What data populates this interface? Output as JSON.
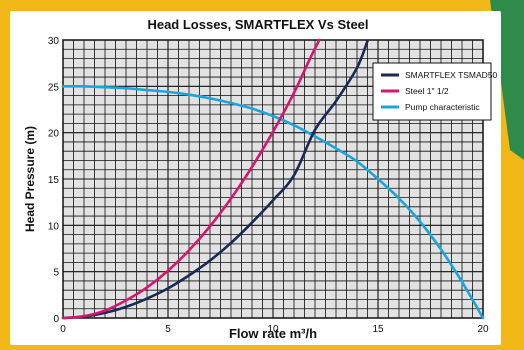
{
  "colors": {
    "background": "#f2b818",
    "corner_accent": "#2e8b4a",
    "card": "#ffffff",
    "plot_fill": "#e2e2e2",
    "grid": "#111111",
    "smartflex": "#1b2a55",
    "steel": "#d7156e",
    "pump": "#1aa6dc"
  },
  "chart_data": {
    "type": "line",
    "title": "Head Losses, SMARTFLEX Vs Steel",
    "xlabel": "Flow rate m³/h",
    "ylabel": "Head Pressure (m)",
    "xlim": [
      0,
      20
    ],
    "ylim": [
      0,
      30
    ],
    "x_ticks": [
      0,
      5,
      10,
      15,
      20
    ],
    "y_ticks": [
      0,
      5,
      10,
      15,
      20,
      25,
      30
    ],
    "grid": true,
    "legend_position": "top-right",
    "series": [
      {
        "name": "SMARTFLEX TSMAD50",
        "color": "#1b2a55",
        "x": [
          0,
          1,
          2,
          3,
          4,
          5,
          6,
          7,
          8,
          9,
          10,
          11,
          12,
          13,
          14,
          14.5
        ],
        "y": [
          0,
          0.15,
          0.55,
          1.2,
          2.1,
          3.2,
          4.6,
          6.2,
          8.1,
          10.3,
          12.7,
          15.4,
          20.3,
          23.4,
          27.0,
          29.9
        ]
      },
      {
        "name": "Steel 1\" 1/2",
        "color": "#d7156e",
        "x": [
          0,
          1,
          2,
          3,
          4,
          5,
          6,
          7,
          8,
          9,
          10,
          11,
          11.7,
          12.2
        ],
        "y": [
          0,
          0.2,
          0.8,
          1.9,
          3.3,
          5.1,
          7.3,
          9.9,
          12.9,
          16.3,
          20.1,
          24.3,
          27.7,
          30.0
        ]
      },
      {
        "name": "Pump characteristic",
        "color": "#1aa6dc",
        "x": [
          0,
          1,
          2,
          3,
          4,
          5,
          6,
          7,
          8,
          9,
          10,
          11,
          12,
          13,
          14,
          15,
          16,
          17,
          18,
          19,
          20
        ],
        "y": [
          25,
          25,
          24.9,
          24.8,
          24.6,
          24.4,
          24.1,
          23.7,
          23.2,
          22.6,
          21.8,
          20.8,
          19.6,
          18.3,
          16.9,
          15.0,
          12.9,
          10.4,
          7.4,
          3.9,
          0
        ]
      }
    ]
  }
}
